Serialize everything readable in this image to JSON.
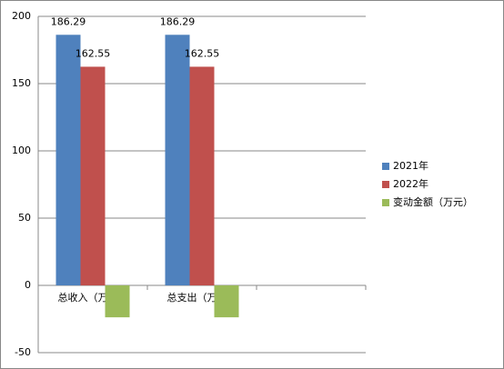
{
  "chart_data": {
    "type": "bar",
    "categories": [
      "总收入（万元）",
      "总支出（万元）",
      null
    ],
    "series": [
      {
        "name": "2021年",
        "color": "#4f81bd",
        "values": [
          186.29,
          186.29,
          null
        ],
        "labels": true
      },
      {
        "name": "2022年",
        "color": "#c0504d",
        "values": [
          162.55,
          162.55,
          null
        ],
        "labels": true
      },
      {
        "name": "变动金额（万元）",
        "color": "#9bbb59",
        "values": [
          -23.74,
          -23.74,
          null
        ],
        "labels": false
      }
    ],
    "ylim": [
      -50,
      200
    ],
    "yticks": [
      -50,
      0,
      50,
      100,
      150,
      200
    ],
    "grid": true,
    "legend": "right"
  }
}
